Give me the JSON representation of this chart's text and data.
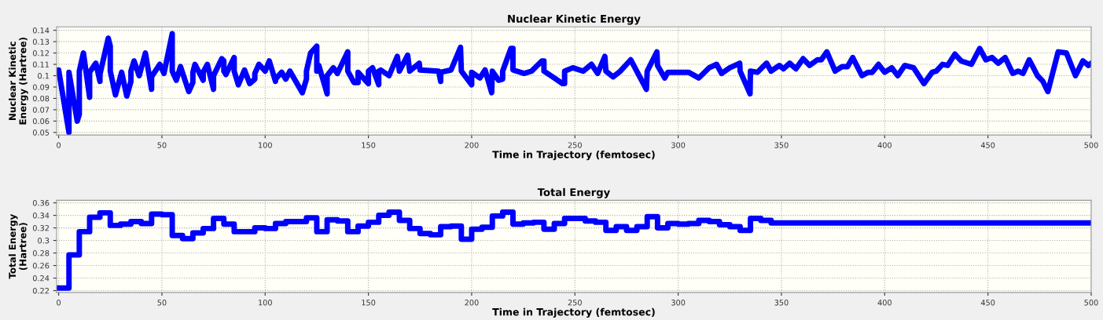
{
  "chart_data": [
    {
      "type": "line",
      "title": "Nuclear Kinetic Energy",
      "xlabel": "Time in Trajectory (femtosec)",
      "ylabel": "Nuclear Kinetic\nEnergy (Hartree)",
      "xlim": [
        -1,
        500
      ],
      "ylim": [
        0.0477,
        0.143
      ],
      "xticks": [
        0,
        50,
        100,
        150,
        200,
        250,
        300,
        350,
        400,
        450,
        500
      ],
      "yticks": [
        0.05,
        0.06,
        0.07,
        0.08,
        0.09,
        0.1,
        0.11,
        0.12,
        0.13,
        0.14
      ],
      "grid": true,
      "series": [
        {
          "color": "#0000ff",
          "x": [
            0,
            5,
            5,
            9,
            10,
            10,
            12,
            15,
            15,
            18,
            20,
            20,
            24,
            25,
            25,
            27.5,
            30.5,
            33,
            35,
            35,
            36.5,
            39,
            42,
            45,
            45,
            49,
            51,
            55,
            55,
            57,
            59,
            63,
            65,
            65,
            66,
            70,
            70,
            72,
            75,
            75,
            79,
            80,
            80,
            81,
            85,
            85,
            87,
            90,
            92.5,
            95,
            95,
            97,
            100,
            102,
            105,
            105,
            108,
            110,
            112,
            118,
            120,
            120,
            122,
            125,
            125,
            126,
            130,
            130,
            133,
            135,
            140,
            140,
            143,
            145,
            145,
            150,
            150,
            152,
            155,
            155,
            156,
            160,
            164,
            165,
            169,
            170,
            174.6,
            175,
            184,
            185,
            185,
            190,
            194.6,
            195,
            200,
            200,
            204,
            206.5,
            209.7,
            210,
            213,
            215,
            215,
            219,
            220,
            220,
            225.4,
            229,
            234,
            235,
            235,
            240,
            244,
            245,
            245,
            249,
            254,
            258,
            261,
            264.5,
            265,
            268.5,
            272,
            277,
            284.6,
            285,
            289.7,
            290,
            293.5,
            295,
            305,
            310,
            315,
            318.6,
            321,
            325,
            329.8,
            330,
            334.8,
            335,
            338.4,
            342.8,
            345,
            349,
            351,
            354,
            357,
            360.5,
            363.6,
            367.4,
            369.3,
            372,
            376,
            379.4,
            382,
            384.5,
            389,
            392,
            394,
            397,
            400,
            403.4,
            406.3,
            409.7,
            414,
            419,
            423,
            425,
            428,
            430.5,
            434,
            437,
            442,
            446,
            449,
            452,
            455,
            458.3,
            462,
            464.6,
            467,
            470,
            474,
            476.6,
            479,
            484,
            488,
            492.4,
            496,
            498.7,
            500
          ],
          "values": [
            0.105,
            0.05,
            0.103,
            0.06,
            0.066,
            0.104,
            0.12,
            0.081,
            0.103,
            0.111,
            0.095,
            0.101,
            0.133,
            0.126,
            0.104,
            0.083,
            0.103,
            0.082,
            0.095,
            0.104,
            0.113,
            0.1,
            0.12,
            0.088,
            0.099,
            0.11,
            0.102,
            0.137,
            0.104,
            0.096,
            0.108,
            0.086,
            0.094,
            0.103,
            0.11,
            0.096,
            0.103,
            0.11,
            0.088,
            0.1,
            0.115,
            0.113,
            0.104,
            0.101,
            0.116,
            0.104,
            0.092,
            0.105,
            0.093,
            0.097,
            0.102,
            0.11,
            0.104,
            0.113,
            0.095,
            0.097,
            0.103,
            0.097,
            0.104,
            0.085,
            0.097,
            0.104,
            0.12,
            0.126,
            0.104,
            0.109,
            0.084,
            0.1,
            0.107,
            0.102,
            0.121,
            0.104,
            0.094,
            0.094,
            0.103,
            0.093,
            0.104,
            0.107,
            0.092,
            0.104,
            0.105,
            0.1,
            0.117,
            0.104,
            0.118,
            0.104,
            0.111,
            0.105,
            0.104,
            0.095,
            0.103,
            0.105,
            0.125,
            0.104,
            0.092,
            0.103,
            0.098,
            0.105,
            0.085,
            0.104,
            0.096,
            0.097,
            0.104,
            0.124,
            0.124,
            0.105,
            0.102,
            0.104,
            0.113,
            0.113,
            0.104,
            0.098,
            0.093,
            0.093,
            0.104,
            0.107,
            0.104,
            0.11,
            0.102,
            0.117,
            0.104,
            0.099,
            0.104,
            0.114,
            0.088,
            0.104,
            0.121,
            0.109,
            0.098,
            0.103,
            0.103,
            0.098,
            0.107,
            0.11,
            0.102,
            0.107,
            0.111,
            0.104,
            0.084,
            0.104,
            0.103,
            0.111,
            0.104,
            0.109,
            0.106,
            0.111,
            0.106,
            0.115,
            0.109,
            0.114,
            0.114,
            0.121,
            0.104,
            0.108,
            0.108,
            0.116,
            0.1,
            0.103,
            0.103,
            0.11,
            0.103,
            0.107,
            0.1,
            0.109,
            0.107,
            0.093,
            0.103,
            0.104,
            0.11,
            0.109,
            0.119,
            0.113,
            0.11,
            0.124,
            0.114,
            0.116,
            0.111,
            0.116,
            0.102,
            0.104,
            0.102,
            0.114,
            0.1,
            0.095,
            0.086,
            0.121,
            0.12,
            0.1,
            0.113,
            0.109,
            0.111
          ]
        }
      ]
    },
    {
      "type": "step",
      "title": "Total Energy",
      "xlabel": "Time in Trajectory (femtosec)",
      "ylabel": "Total Energy\n(Hartree)",
      "xlim": [
        -1,
        500
      ],
      "ylim": [
        0.217,
        0.364
      ],
      "xticks": [
        0,
        50,
        100,
        150,
        200,
        250,
        300,
        350,
        400,
        450,
        500
      ],
      "yticks": [
        0.22,
        0.24,
        0.26,
        0.28,
        0.3,
        0.32,
        0.34,
        0.36
      ],
      "grid": true,
      "series": [
        {
          "color": "#0000ff",
          "x": [
            0,
            5,
            10,
            15,
            20,
            25,
            30,
            35,
            40,
            45,
            50,
            55,
            60,
            65,
            70,
            75,
            80,
            85,
            90,
            95,
            100,
            105,
            110,
            115,
            120,
            125,
            130,
            135,
            140,
            145,
            150,
            155,
            160,
            165,
            170,
            175,
            180,
            185,
            190,
            195,
            200,
            205,
            210,
            215,
            220,
            225,
            230,
            235,
            240,
            245,
            250,
            255,
            260,
            265,
            270,
            275,
            280,
            285,
            290,
            295,
            300,
            305,
            310,
            315,
            320,
            325,
            330,
            335,
            340,
            345,
            500
          ],
          "values": [
            0.224,
            0.277,
            0.314,
            0.337,
            0.344,
            0.324,
            0.326,
            0.33,
            0.327,
            0.342,
            0.341,
            0.308,
            0.303,
            0.312,
            0.319,
            0.335,
            0.326,
            0.314,
            0.314,
            0.32,
            0.319,
            0.327,
            0.33,
            0.33,
            0.336,
            0.314,
            0.333,
            0.331,
            0.314,
            0.323,
            0.329,
            0.34,
            0.345,
            0.332,
            0.319,
            0.311,
            0.309,
            0.322,
            0.323,
            0.302,
            0.318,
            0.321,
            0.339,
            0.345,
            0.326,
            0.328,
            0.329,
            0.318,
            0.327,
            0.335,
            0.335,
            0.331,
            0.329,
            0.316,
            0.322,
            0.316,
            0.322,
            0.338,
            0.32,
            0.327,
            0.326,
            0.327,
            0.332,
            0.33,
            0.325,
            0.322,
            0.316,
            0.335,
            0.332,
            0.328,
            0.328
          ]
        }
      ]
    }
  ]
}
